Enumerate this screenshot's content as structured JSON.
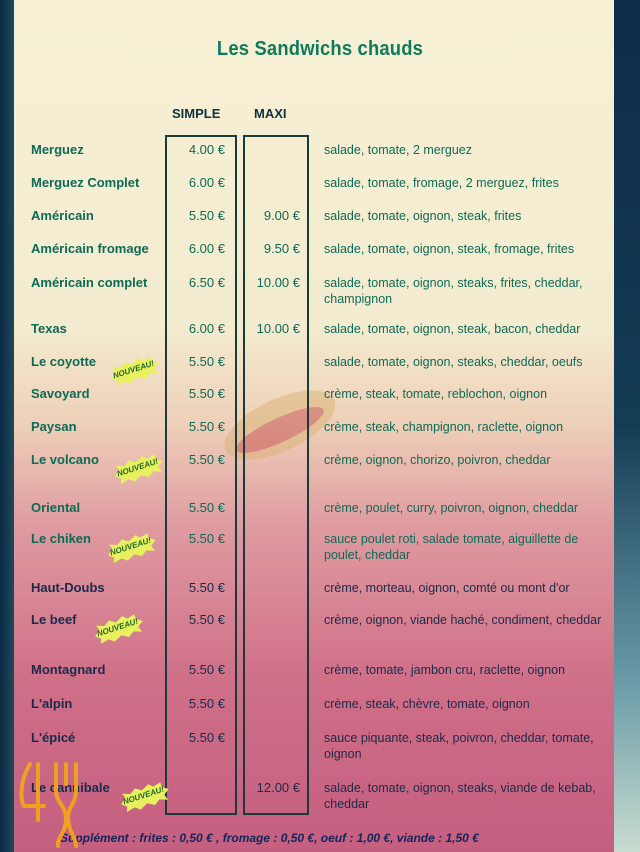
{
  "title": "Les Sandwichs chauds",
  "columns": {
    "simple": "SIMPLE",
    "maxi": "MAXI"
  },
  "badge_text": "NOUVEAU!",
  "items": [
    {
      "name": "Merguez",
      "simple": "4.00 €",
      "maxi": "",
      "desc": "salade, tomate, 2 merguez",
      "new": false
    },
    {
      "name": "Merguez Complet",
      "simple": "6.00 €",
      "maxi": "",
      "desc": "salade, tomate, fromage, 2 merguez, frites",
      "new": false
    },
    {
      "name": "Américain",
      "simple": "5.50 €",
      "maxi": "9.00 €",
      "desc": "salade, tomate, oignon, steak, frites",
      "new": false
    },
    {
      "name": "Américain fromage",
      "simple": "6.00 €",
      "maxi": "9.50 €",
      "desc": "salade, tomate, oignon, steak, fromage, frites",
      "new": false
    },
    {
      "name": "Américain complet",
      "simple": "6.50 €",
      "maxi": "10.00 €",
      "desc": "salade, tomate, oignon, steaks, frites, cheddar, champignon",
      "new": false
    },
    {
      "name": "Texas",
      "simple": "6.00 €",
      "maxi": "10.00 €",
      "desc": "salade, tomate, oignon, steak, bacon, cheddar",
      "new": false
    },
    {
      "name": "Le coyotte",
      "simple": "5.50 €",
      "maxi": "",
      "desc": "salade, tomate, oignon, steaks, cheddar, oeufs",
      "new": true
    },
    {
      "name": "Savoyard",
      "simple": "5.50 €",
      "maxi": "",
      "desc": "crème, steak, tomate, reblochon, oignon",
      "new": false
    },
    {
      "name": "Paysan",
      "simple": "5.50 €",
      "maxi": "",
      "desc": "crème, steak, champignon, raclette, oignon",
      "new": false
    },
    {
      "name": "Le volcano",
      "simple": "5.50 €",
      "maxi": "",
      "desc": "crème, oignon, chorizo, poivron, cheddar",
      "new": true
    },
    {
      "name": "Oriental",
      "simple": "5.50 €",
      "maxi": "",
      "desc": "crème, poulet, curry, poivron, oignon, cheddar",
      "new": false
    },
    {
      "name": "Le chiken",
      "simple": "5.50 €",
      "maxi": "",
      "desc": "sauce poulet roti, salade tomate, aiguillette de poulet, cheddar",
      "new": true
    },
    {
      "name": "Haut-Doubs",
      "simple": "5.50 €",
      "maxi": "",
      "desc": "crème, morteau, oignon, comté ou mont d'or",
      "new": false
    },
    {
      "name": "Le beef",
      "simple": "5.50 €",
      "maxi": "",
      "desc": "crème, oignon, viande haché, condiment, cheddar",
      "new": true
    },
    {
      "name": "Montagnard",
      "simple": "5.50 €",
      "maxi": "",
      "desc": "crème, tomate, jambon cru, raclette, oignon",
      "new": false
    },
    {
      "name": "L'alpin",
      "simple": "5.50 €",
      "maxi": "",
      "desc": "crème, steak, chèvre, tomate, oignon",
      "new": false
    },
    {
      "name": "L'épicé",
      "simple": "5.50 €",
      "maxi": "",
      "desc": "sauce piquante, steak, poivron, cheddar, tomate, oignon",
      "new": false
    },
    {
      "name": "Le cannibale",
      "simple": "",
      "maxi": "12.00 €",
      "desc": "salade, tomate, oignon, steaks, viande de kebab, cheddar",
      "new": true
    }
  ],
  "supplement": "Supplément : frites : 0,50 € , fromage : 0,50 €, oeuf : 1,00 €, viande : 1,50 €",
  "colors": {
    "title": "#0d7a5c",
    "text_top": "#0d6a55",
    "text_bottom": "#1b2a4a",
    "badge": "#e8f060",
    "logo": "#f0a020"
  }
}
